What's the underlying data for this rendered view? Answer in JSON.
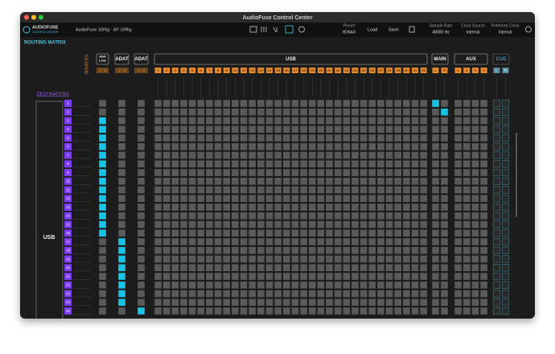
{
  "window": {
    "title": "AudioFuse Control Center"
  },
  "toolbar": {
    "logo": "AUDIOFUSE",
    "logo_sub": "CONTROL CENTER",
    "device": "AudioFuse 16Rig · AF 16Rig",
    "preset_label": "Preset",
    "preset": "HD6AX",
    "load": "Load",
    "save": "Save",
    "sample_rate_label": "Sample Rate",
    "sample_rate": "48000 Hz",
    "clock_source_label": "Clock Source",
    "clock_source": "Internal",
    "preferred_clock_label": "Preferred Clock",
    "preferred_clock": "Internal"
  },
  "matrix": {
    "title": "ROUTING MATRIX",
    "sources_label": "SOURCES",
    "destinations_label": "DESTINATIONS",
    "sources": [
      {
        "label": [
          "ANA",
          "LOG"
        ],
        "range": "1 - 8"
      },
      {
        "label": [
          "ADAT"
        ],
        "range": "1 - 8"
      },
      {
        "label": [
          "ADAT"
        ],
        "range": "1 - 8"
      },
      {
        "label": [
          "USB"
        ],
        "channels": [
          1,
          2,
          3,
          4,
          5,
          6,
          7,
          8,
          9,
          10,
          11,
          12,
          13,
          14,
          15,
          16,
          17,
          18,
          19,
          20,
          21,
          22,
          23,
          24,
          25,
          26,
          27,
          28,
          29,
          30,
          31,
          32
        ]
      },
      {
        "label": [
          "MAIN"
        ],
        "channels": [
          "L",
          "R"
        ]
      },
      {
        "label": [
          "AUX"
        ],
        "channels": [
          1,
          2,
          3,
          4
        ]
      },
      {
        "label": [
          "CUE"
        ],
        "channels": [
          "L",
          "R"
        ]
      }
    ],
    "destinations": {
      "label": "USB",
      "channels": [
        1,
        2,
        3,
        4,
        5,
        6,
        7,
        8,
        9,
        10,
        11,
        12,
        13,
        14,
        15,
        16,
        17,
        18,
        19,
        20,
        21,
        22,
        23,
        24,
        25
      ]
    }
  }
}
